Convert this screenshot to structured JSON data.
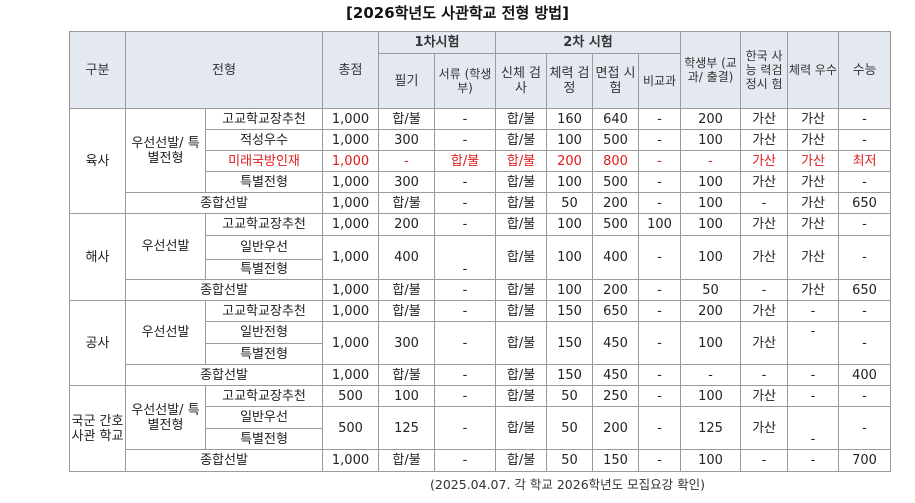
{
  "title": "[2026학년도 사관학교 전형 방법]",
  "header": {
    "gubun": "구분",
    "jeonhyeong": "전형",
    "chongjeom": "총점",
    "first": "1차시험",
    "second": "2차 시험",
    "pilgi": "필기",
    "seoryu": "서류 (학생부)",
    "sinche": "신체 검사",
    "cheryeok": "체력 검정",
    "myeonjeop": "면접 시험",
    "bigyogwa": "비교과",
    "haksaengbu": "학생부 (교과/ 출결)",
    "hanguksa": "한국 사능 력검 정시 험",
    "cheryeokusu": "체력 우수",
    "suneung": "수능"
  },
  "groups": {
    "yuksa": "육사",
    "haesa": "해사",
    "gongsa": "공사",
    "ganho": "국군 간호 사관 학교"
  },
  "subgroups": {
    "yuksa_sub": "우선선발/ 특별전형",
    "haesa_sub": "우선선발",
    "gongsa_sub": "우선선발",
    "ganho_sub": "우선선발/ 특별전형"
  },
  "rows": {
    "y1": {
      "name": "고교학교장추천",
      "total": "1,000",
      "pilgi": "합/불",
      "seoryu": "-",
      "sinche": "합/불",
      "cheryeok": "160",
      "myeonjeop": "640",
      "bigyo": "-",
      "hak": "200",
      "hanguk": "가산",
      "usu": "가산",
      "suneung": "-"
    },
    "y2": {
      "name": "적성우수",
      "total": "1,000",
      "pilgi": "300",
      "seoryu": "-",
      "sinche": "합/불",
      "cheryeok": "100",
      "myeonjeop": "500",
      "bigyo": "-",
      "hak": "100",
      "hanguk": "가산",
      "usu": "가산",
      "suneung": "-"
    },
    "y3": {
      "name": "미래국방인재",
      "total": "1,000",
      "pilgi": "-",
      "seoryu": "합/불",
      "sinche": "합/불",
      "cheryeok": "200",
      "myeonjeop": "800",
      "bigyo": "-",
      "hak": "-",
      "hanguk": "가산",
      "usu": "가산",
      "suneung": "최저"
    },
    "y4": {
      "name": "특별전형",
      "total": "1,000",
      "pilgi": "300",
      "seoryu": "-",
      "sinche": "합/불",
      "cheryeok": "100",
      "myeonjeop": "500",
      "bigyo": "-",
      "hak": "100",
      "hanguk": "가산",
      "usu": "가산",
      "suneung": "-"
    },
    "y5": {
      "name": "종합선발",
      "total": "1,000",
      "pilgi": "합/불",
      "seoryu": "-",
      "sinche": "합/불",
      "cheryeok": "50",
      "myeonjeop": "200",
      "bigyo": "-",
      "hak": "100",
      "hanguk": "-",
      "usu": "가산",
      "suneung": "650"
    },
    "h1": {
      "name": "고교학교장추천",
      "total": "1,000",
      "pilgi": "200",
      "seoryu": "-",
      "sinche": "합/불",
      "cheryeok": "100",
      "myeonjeop": "500",
      "bigyo": "100",
      "hak": "100",
      "hanguk": "가산",
      "usu": "가산",
      "suneung": "-"
    },
    "h2": {
      "name": "일반우선",
      "total": "1,000",
      "pilgi": "400",
      "seoryu": "-",
      "sinche": "합/불",
      "cheryeok": "100",
      "myeonjeop": "400",
      "bigyo": "-",
      "hak": "100",
      "hanguk": "가산",
      "usu": "가산",
      "suneung": "-"
    },
    "h3": {
      "name": "특별전형"
    },
    "h4": {
      "name": "종합선발",
      "total": "1,000",
      "pilgi": "합/불",
      "seoryu": "-",
      "sinche": "합/불",
      "cheryeok": "100",
      "myeonjeop": "200",
      "bigyo": "-",
      "hak": "50",
      "hanguk": "-",
      "usu": "가산",
      "suneung": "650"
    },
    "g1": {
      "name": "고교학교장추천",
      "total": "1,000",
      "pilgi": "합/불",
      "seoryu": "-",
      "sinche": "합/불",
      "cheryeok": "150",
      "myeonjeop": "650",
      "bigyo": "-",
      "hak": "200",
      "hanguk": "가산",
      "usu": "-",
      "suneung": "-"
    },
    "g2": {
      "name": "일반전형",
      "total": "1,000",
      "pilgi": "300",
      "seoryu": "-",
      "sinche": "합/불",
      "cheryeok": "150",
      "myeonjeop": "450",
      "bigyo": "-",
      "hak": "100",
      "hanguk": "가산",
      "usu": "-",
      "suneung": "-"
    },
    "g3": {
      "name": "특별전형"
    },
    "g4": {
      "name": "종합선발",
      "total": "1,000",
      "pilgi": "합/불",
      "seoryu": "-",
      "sinche": "합/불",
      "cheryeok": "150",
      "myeonjeop": "450",
      "bigyo": "-",
      "hak": "-",
      "hanguk": "-",
      "usu": "-",
      "suneung": "400"
    },
    "k1": {
      "name": "고교학교장추천",
      "total": "500",
      "pilgi": "100",
      "seoryu": "-",
      "sinche": "합/불",
      "cheryeok": "50",
      "myeonjeop": "250",
      "bigyo": "-",
      "hak": "100",
      "hanguk": "가산",
      "usu": "-",
      "suneung": "-"
    },
    "k2": {
      "name": "일반우선",
      "total": "500",
      "pilgi": "125",
      "seoryu": "-",
      "sinche": "합/불",
      "cheryeok": "50",
      "myeonjeop": "200",
      "bigyo": "-",
      "hak": "125",
      "hanguk": "가산",
      "usu": "-",
      "suneung": "-"
    },
    "k3": {
      "name": "특별전형"
    },
    "k4": {
      "name": "종합선발",
      "total": "1,000",
      "pilgi": "합/불",
      "seoryu": "-",
      "sinche": "합/불",
      "cheryeok": "50",
      "myeonjeop": "150",
      "bigyo": "-",
      "hak": "100",
      "hanguk": "-",
      "usu": "-",
      "suneung": "700"
    }
  },
  "footnote": "(2025.04.07. 각 학교 2026학년도 모집요강 확인)"
}
